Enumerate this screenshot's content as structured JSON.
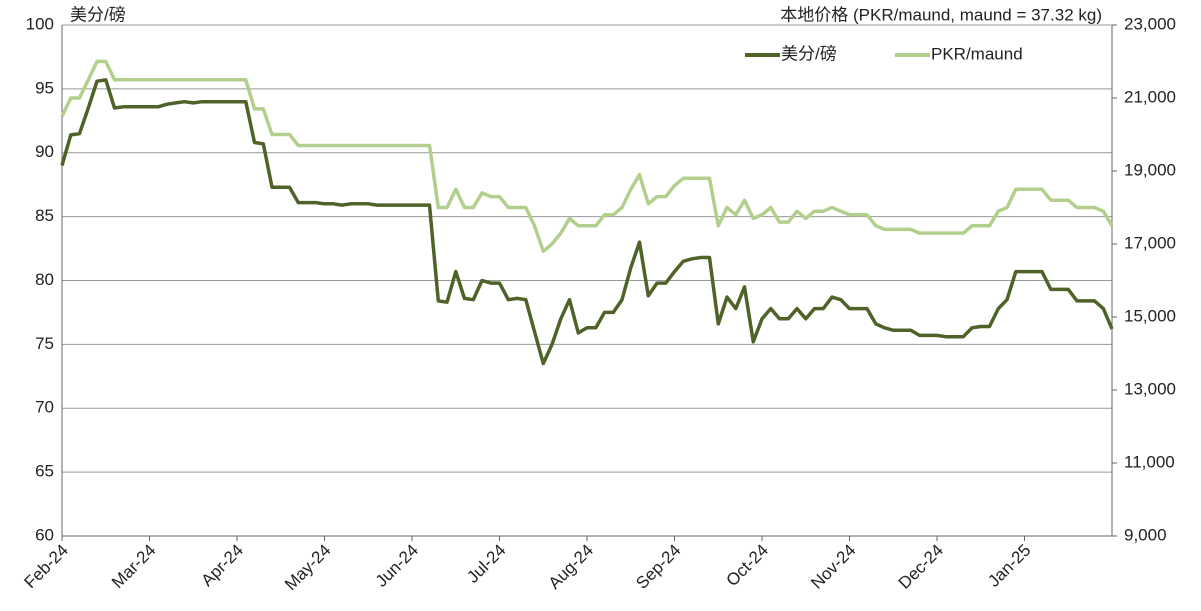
{
  "chart_data": {
    "type": "line",
    "y_label": "美分/磅",
    "y2_label": "本地价格 (PKR/maund, maund = 37.32 kg)",
    "categories": [
      "Feb-24",
      null,
      null,
      null,
      null,
      null,
      null,
      null,
      null,
      null,
      "Mar-24",
      null,
      null,
      null,
      null,
      null,
      null,
      null,
      null,
      null,
      "Apr-24",
      null,
      null,
      null,
      null,
      null,
      null,
      null,
      null,
      null,
      "May-24",
      null,
      null,
      null,
      null,
      null,
      null,
      null,
      null,
      null,
      "Jun-24",
      null,
      null,
      null,
      null,
      null,
      null,
      null,
      null,
      null,
      "Jul-24",
      null,
      null,
      null,
      null,
      null,
      null,
      null,
      null,
      null,
      "Aug-24",
      null,
      null,
      null,
      null,
      null,
      null,
      null,
      null,
      null,
      "Sep-24",
      null,
      null,
      null,
      null,
      null,
      null,
      null,
      null,
      null,
      "Oct-24",
      null,
      null,
      null,
      null,
      null,
      null,
      null,
      null,
      null,
      "Nov-24",
      null,
      null,
      null,
      null,
      null,
      null,
      null,
      null,
      null,
      "Dec-24",
      null,
      null,
      null,
      null,
      null,
      null,
      null,
      null,
      null,
      "Jan-25",
      null,
      null,
      null,
      null,
      null,
      null,
      null,
      null,
      null,
      null
    ],
    "series": [
      {
        "name": "美分/磅",
        "color": "#4f6228",
        "axis": "y",
        "values": [
          89,
          91.4,
          91.5,
          93.5,
          95.6,
          95.7,
          93.5,
          93.6,
          93.6,
          93.6,
          93.6,
          93.6,
          93.8,
          93.9,
          94,
          93.9,
          94,
          94,
          94,
          94,
          94,
          94,
          90.8,
          90.7,
          87.3,
          87.3,
          87.3,
          86.1,
          86.1,
          86.1,
          86,
          86,
          85.9,
          86,
          86,
          86,
          85.9,
          85.9,
          85.9,
          85.9,
          85.9,
          85.9,
          85.9,
          78.4,
          78.3,
          80.7,
          78.6,
          78.5,
          80,
          79.8,
          79.8,
          78.5,
          78.6,
          78.5,
          76,
          73.5,
          75,
          77,
          78.5,
          75.9,
          76.3,
          76.3,
          77.5,
          77.5,
          78.5,
          81,
          83,
          78.8,
          79.8,
          79.8,
          80.7,
          81.5,
          81.7,
          81.8,
          81.8,
          76.6,
          78.7,
          77.8,
          79.5,
          75.2,
          77,
          77.8,
          77,
          77,
          77.8,
          77,
          77.8,
          77.8,
          78.7,
          78.5,
          77.8,
          77.8,
          77.8,
          76.6,
          76.3,
          76.1,
          76.1,
          76.1,
          75.7,
          75.7,
          75.7,
          75.6,
          75.6,
          75.6,
          76.3,
          76.4,
          76.4,
          77.8,
          78.5,
          80.7,
          80.7,
          80.7,
          80.7,
          79.3,
          79.3,
          79.3,
          78.4,
          78.4,
          78.4,
          77.8,
          76.2
        ]
      },
      {
        "name": "PKR/maund",
        "color": "#b3cf8e",
        "axis": "y2",
        "values": [
          20500,
          21000,
          21000,
          21500,
          22000,
          22000,
          21500,
          21500,
          21500,
          21500,
          21500,
          21500,
          21500,
          21500,
          21500,
          21500,
          21500,
          21500,
          21500,
          21500,
          21500,
          21500,
          20700,
          20700,
          20000,
          20000,
          20000,
          19700,
          19700,
          19700,
          19700,
          19700,
          19700,
          19700,
          19700,
          19700,
          19700,
          19700,
          19700,
          19700,
          19700,
          19700,
          19700,
          18000,
          18000,
          18500,
          18000,
          18000,
          18400,
          18300,
          18300,
          18000,
          18000,
          18000,
          17500,
          16800,
          17000,
          17300,
          17700,
          17500,
          17500,
          17500,
          17800,
          17800,
          18000,
          18500,
          18900,
          18100,
          18300,
          18300,
          18600,
          18800,
          18800,
          18800,
          18800,
          17500,
          18000,
          17800,
          18200,
          17700,
          17800,
          18000,
          17600,
          17600,
          17900,
          17700,
          17900,
          17900,
          18000,
          17900,
          17800,
          17800,
          17800,
          17500,
          17400,
          17400,
          17400,
          17400,
          17300,
          17300,
          17300,
          17300,
          17300,
          17300,
          17500,
          17500,
          17500,
          17900,
          18000,
          18500,
          18500,
          18500,
          18500,
          18200,
          18200,
          18200,
          18000,
          18000,
          18000,
          17900,
          17500
        ]
      }
    ],
    "ylim": [
      60,
      100
    ],
    "yticks": [
      60,
      65,
      70,
      75,
      80,
      85,
      90,
      95,
      100
    ],
    "y2lim": [
      9000,
      23000
    ],
    "y2ticks": [
      {
        "value": 9000,
        "label": "9,000"
      },
      {
        "value": 11000,
        "label": "11,000"
      },
      {
        "value": 13000,
        "label": "13,000"
      },
      {
        "value": 15000,
        "label": "15,000"
      },
      {
        "value": 17000,
        "label": "17,000"
      },
      {
        "value": 19000,
        "label": "19,000"
      },
      {
        "value": 21000,
        "label": "21,000"
      },
      {
        "value": 23000,
        "label": "23,000"
      }
    ],
    "grid": true,
    "legend": "top-right"
  }
}
